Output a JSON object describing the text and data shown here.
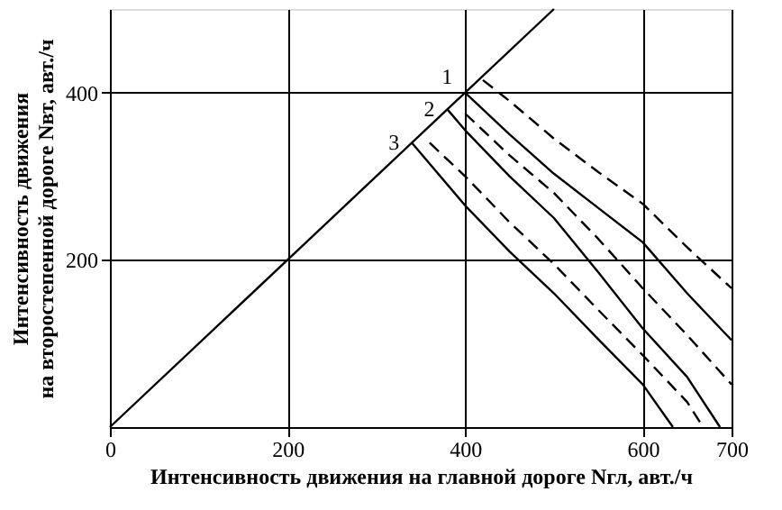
{
  "chart_data": {
    "type": "line",
    "xlabel": "Интенсивность движения на главной дороге Nгл, авт./ч",
    "ylabel": [
      "Интенсивность движения",
      "на второстепенной дороге Nвт, авт./ч"
    ],
    "xlim": [
      0,
      700
    ],
    "ylim": [
      0,
      500
    ],
    "xticks": [
      0,
      200,
      400,
      600,
      700
    ],
    "yticks": [
      200,
      400
    ],
    "grid": true,
    "marker": "none",
    "series": [
      {
        "color": "#000000",
        "line_style": "solid",
        "x": [
          0,
          500
        ],
        "values": [
          0,
          500
        ]
      },
      {
        "name": "1",
        "color": "#000000",
        "line_style": "solid",
        "x": [
          400,
          450,
          500,
          550,
          600,
          650,
          700
        ],
        "values": [
          400,
          350,
          303,
          262,
          221,
          160,
          104
        ]
      },
      {
        "color": "#000000",
        "line_style": "dashed",
        "x": [
          420,
          450,
          500,
          550,
          600,
          650,
          700
        ],
        "values": [
          415,
          390,
          345,
          305,
          267,
          215,
          166
        ]
      },
      {
        "name": "2",
        "color": "#000000",
        "line_style": "solid",
        "x": [
          380,
          400,
          450,
          500,
          550,
          600,
          650,
          687
        ],
        "values": [
          380,
          355,
          300,
          250,
          185,
          118,
          60,
          0
        ]
      },
      {
        "color": "#000000",
        "line_style": "dashed",
        "x": [
          400,
          450,
          500,
          550,
          600,
          650,
          700
        ],
        "values": [
          375,
          325,
          280,
          225,
          166,
          110,
          51
        ]
      },
      {
        "name": "3",
        "color": "#000000",
        "line_style": "solid",
        "x": [
          340,
          400,
          450,
          500,
          550,
          600,
          634
        ],
        "values": [
          340,
          265,
          210,
          160,
          105,
          51,
          0
        ]
      },
      {
        "color": "#000000",
        "line_style": "dashed",
        "x": [
          360,
          400,
          450,
          500,
          550,
          600,
          650,
          668
        ],
        "values": [
          340,
          300,
          245,
          195,
          140,
          86,
          30,
          0
        ]
      }
    ]
  }
}
